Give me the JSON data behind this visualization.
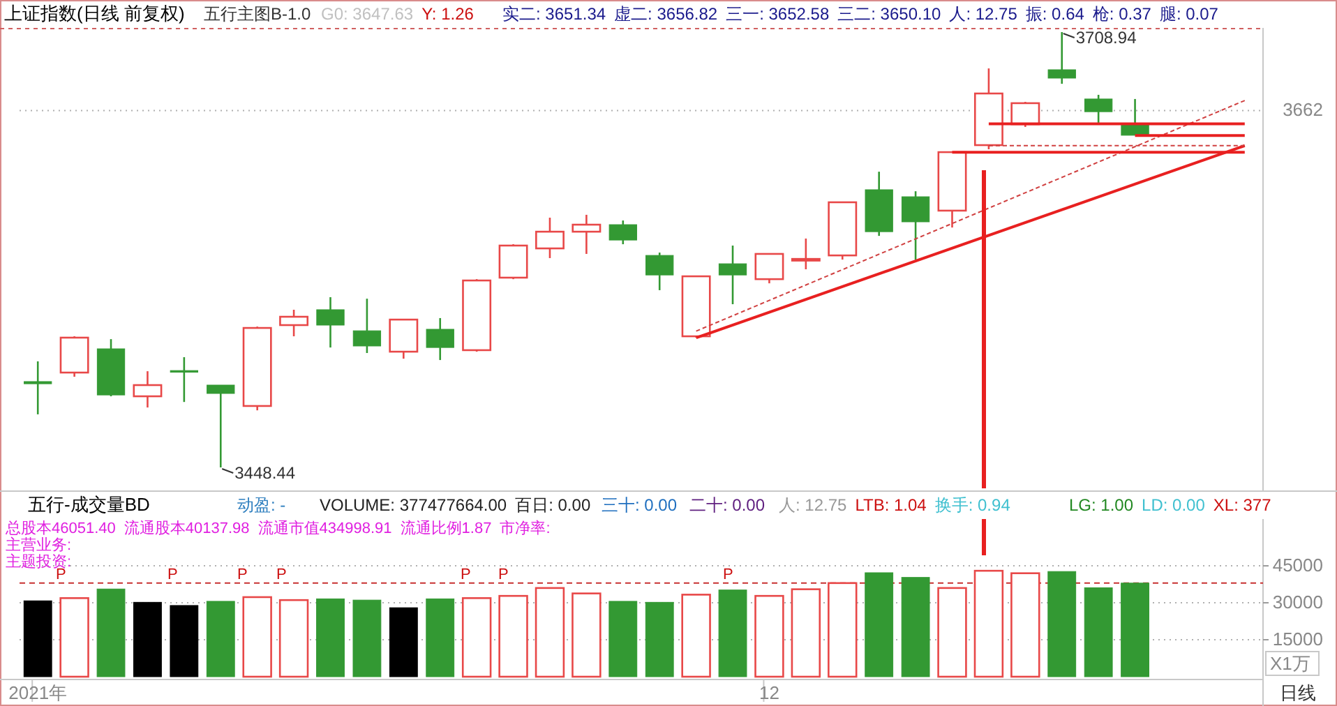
{
  "chart_data": [
    {
      "type": "candlestick",
      "title": "上证指数(日线 前复权)",
      "categories": [
        null,
        null,
        null,
        null,
        null,
        null,
        null,
        null,
        null,
        null,
        null,
        null,
        null,
        null,
        null,
        null,
        null,
        null,
        null,
        null,
        null,
        null,
        null,
        null,
        null,
        null,
        null,
        null,
        null,
        null,
        null,
        null,
        null,
        null
      ],
      "ohlc": [
        [
          3499.8,
          3511.9,
          3480.2,
          3498.5
        ],
        [
          3505.2,
          3526.9,
          3502.7,
          3526.1
        ],
        [
          3519.4,
          3525.2,
          3491.0,
          3491.8
        ],
        [
          3491.0,
          3506.0,
          3484.3,
          3497.7
        ],
        [
          3506.4,
          3514.4,
          3487.6,
          3505.6
        ],
        [
          3497.7,
          3497.7,
          3448.44,
          3492.7
        ],
        [
          3485.2,
          3532.7,
          3482.6,
          3531.9
        ],
        [
          3533.6,
          3542.8,
          3526.9,
          3538.6
        ],
        [
          3542.8,
          3550.3,
          3520.2,
          3533.6
        ],
        [
          3530.2,
          3549.4,
          3516.9,
          3521.1
        ],
        [
          3517.7,
          3536.9,
          3513.5,
          3536.9
        ],
        [
          3531.1,
          3537.8,
          3512.7,
          3520.2
        ],
        [
          3518.6,
          3561.1,
          3517.7,
          3560.3
        ],
        [
          3562.0,
          3582.0,
          3561.1,
          3581.2
        ],
        [
          3579.5,
          3597.9,
          3573.7,
          3589.5
        ],
        [
          3589.5,
          3599.6,
          3576.2,
          3593.7
        ],
        [
          3593.7,
          3596.2,
          3582.0,
          3584.5
        ],
        [
          3575.3,
          3577.0,
          3554.5,
          3563.6
        ],
        [
          3526.9,
          3562.8,
          3526.1,
          3562.8
        ],
        [
          3570.3,
          3581.2,
          3546.1,
          3563.6
        ],
        [
          3561.1,
          3576.2,
          3558.6,
          3576.2
        ],
        [
          3572.4,
          3585.4,
          3567.0,
          3573.2
        ],
        [
          3575.3,
          3607.1,
          3572.8,
          3607.1
        ],
        [
          3614.6,
          3625.4,
          3587.0,
          3589.5
        ],
        [
          3610.4,
          3613.7,
          3572.8,
          3595.4
        ],
        [
          3602.1,
          3637.1,
          3592.0,
          3637.1
        ],
        [
          3641.3,
          3687.2,
          3638.8,
          3672.2
        ],
        [
          3653.8,
          3667.2,
          3652.2,
          3666.4
        ],
        [
          3686.4,
          3708.94,
          3678.0,
          3681.4
        ],
        [
          3668.9,
          3671.4,
          3654.7,
          3661.3
        ],
        [
          3653.8,
          3668.9,
          3647.2,
          3647.2
        ],
        null,
        null,
        null
      ],
      "colors": [
        "#339933",
        "#e84848",
        "#339933",
        "#e84848",
        "#339933",
        "#339933",
        "#e84848",
        "#e84848",
        "#339933",
        "#339933",
        "#e84848",
        "#339933",
        "#e84848",
        "#e84848",
        "#e84848",
        "#e84848",
        "#339933",
        "#339933",
        "#e84848",
        "#339933",
        "#e84848",
        "#e84848",
        "#e84848",
        "#339933",
        "#339933",
        "#e84848",
        "#e84848",
        "#e84848",
        "#339933",
        "#339933",
        "#339933",
        null,
        null,
        null
      ],
      "ref_lines": [
        {
          "axis": "y",
          "value": 3662,
          "label": "3662",
          "color": "#b0b0b0",
          "line_style": "dotted"
        }
      ],
      "series": [
        {
          "type": "line",
          "color": "#e82020",
          "line_style": "solid",
          "values": [
            null,
            null,
            null,
            null,
            null,
            null,
            null,
            null,
            null,
            null,
            null,
            null,
            null,
            null,
            null,
            null,
            null,
            null,
            3526,
            null,
            null,
            null,
            null,
            null,
            null,
            null,
            null,
            null,
            null,
            null,
            null,
            null,
            null,
            3641
          ]
        },
        {
          "type": "line",
          "color": "#d04040",
          "line_style": "dashed",
          "values": [
            null,
            null,
            null,
            null,
            null,
            null,
            null,
            null,
            null,
            null,
            null,
            null,
            null,
            null,
            null,
            null,
            null,
            null,
            3530,
            null,
            null,
            null,
            null,
            null,
            null,
            null,
            null,
            null,
            null,
            null,
            null,
            null,
            null,
            3668
          ]
        },
        {
          "type": "line",
          "color": "#e82020",
          "line_style": "solid",
          "values": [
            null,
            null,
            null,
            null,
            null,
            null,
            null,
            null,
            null,
            null,
            null,
            null,
            null,
            null,
            null,
            null,
            null,
            null,
            null,
            null,
            null,
            null,
            null,
            null,
            null,
            null,
            3654,
            null,
            null,
            null,
            null,
            null,
            null,
            3654
          ]
        },
        {
          "type": "line",
          "color": "#e82020",
          "line_style": "solid",
          "values": [
            null,
            null,
            null,
            null,
            null,
            null,
            null,
            null,
            null,
            null,
            null,
            null,
            null,
            null,
            null,
            null,
            null,
            null,
            null,
            null,
            null,
            null,
            null,
            null,
            null,
            null,
            null,
            null,
            null,
            null,
            3647,
            null,
            null,
            3647
          ]
        },
        {
          "type": "line",
          "color": "#e82020",
          "line_style": "solid",
          "values": [
            null,
            null,
            null,
            null,
            null,
            null,
            null,
            null,
            null,
            null,
            null,
            null,
            null,
            null,
            null,
            null,
            null,
            null,
            null,
            null,
            null,
            null,
            null,
            null,
            null,
            3637,
            null,
            null,
            null,
            null,
            null,
            null,
            null,
            3637
          ]
        },
        {
          "type": "line",
          "color": "#d04040",
          "line_style": "dashed",
          "values": [
            null,
            null,
            null,
            null,
            null,
            null,
            null,
            null,
            null,
            null,
            null,
            null,
            null,
            null,
            null,
            null,
            null,
            null,
            null,
            null,
            null,
            null,
            null,
            null,
            null,
            null,
            3641,
            null,
            null,
            null,
            null,
            null,
            null,
            3641
          ]
        }
      ],
      "annotations": [
        "五行主图B-1.0",
        "G0: 3647.63",
        "Y: 1.26",
        "实二: 3651.34",
        "虚二: 3656.82",
        "三一: 3652.58",
        "三二: 3650.10",
        "人: 12.75",
        "振: 0.64",
        "枪: 0.37",
        "腿: 0.07",
        "3708.94",
        "3448.44"
      ]
    },
    {
      "type": "bar",
      "title": "五行-成交量BD",
      "ylabel": "X1万",
      "grid": "y",
      "categories": [
        "2021年",
        null,
        null,
        null,
        null,
        null,
        null,
        null,
        null,
        null,
        null,
        null,
        null,
        null,
        null,
        null,
        null,
        null,
        null,
        null,
        "12",
        null,
        null,
        null,
        null,
        null,
        null,
        null,
        null,
        null,
        null,
        null,
        null,
        null
      ],
      "values": [
        30800,
        31900,
        35600,
        30200,
        28900,
        30600,
        32300,
        31100,
        31600,
        31100,
        28000,
        31600,
        31900,
        32800,
        36000,
        33800,
        30600,
        30200,
        33300,
        35200,
        32800,
        35500,
        38000,
        42200,
        40300,
        36000,
        43000,
        42000,
        42700,
        36100,
        38000,
        null,
        null,
        null
      ],
      "colors": [
        "#000000",
        "#e84848",
        "#339933",
        "#000000",
        "#000000",
        "#339933",
        "#e84848",
        "#e84848",
        "#339933",
        "#339933",
        "#000000",
        "#339933",
        "#e84848",
        "#e84848",
        "#e84848",
        "#e84848",
        "#339933",
        "#339933",
        "#e84848",
        "#339933",
        "#e84848",
        "#e84848",
        "#e84848",
        "#339933",
        "#339933",
        "#e84848",
        "#e84848",
        "#e84848",
        "#339933",
        "#339933",
        "#339933",
        null,
        null,
        null
      ],
      "ylim": [
        0,
        64000
      ],
      "yticks": [
        15000,
        30000,
        45000
      ],
      "ref_lines": [
        {
          "axis": "y",
          "value": 38000,
          "color": "#c83030",
          "line_style": "dashed"
        }
      ],
      "annotations": [
        "动盈: -",
        "VOLUME: 377477664.00",
        "百日: 0.00",
        "三十: 0.00",
        "二十: 0.00",
        "人: 12.75",
        "LTB: 1.04",
        "换手: 0.94",
        "LG: 1.00",
        "LD: 0.00",
        "XL: 377",
        "总股本46051.40",
        "流通股本40137.98",
        "流通市值434998.91",
        "流通比例1.87",
        "市净率:",
        "主营业务:",
        "主题投资:",
        "P",
        "P",
        "P",
        "P",
        "P",
        "P",
        "P",
        "日线"
      ]
    }
  ]
}
